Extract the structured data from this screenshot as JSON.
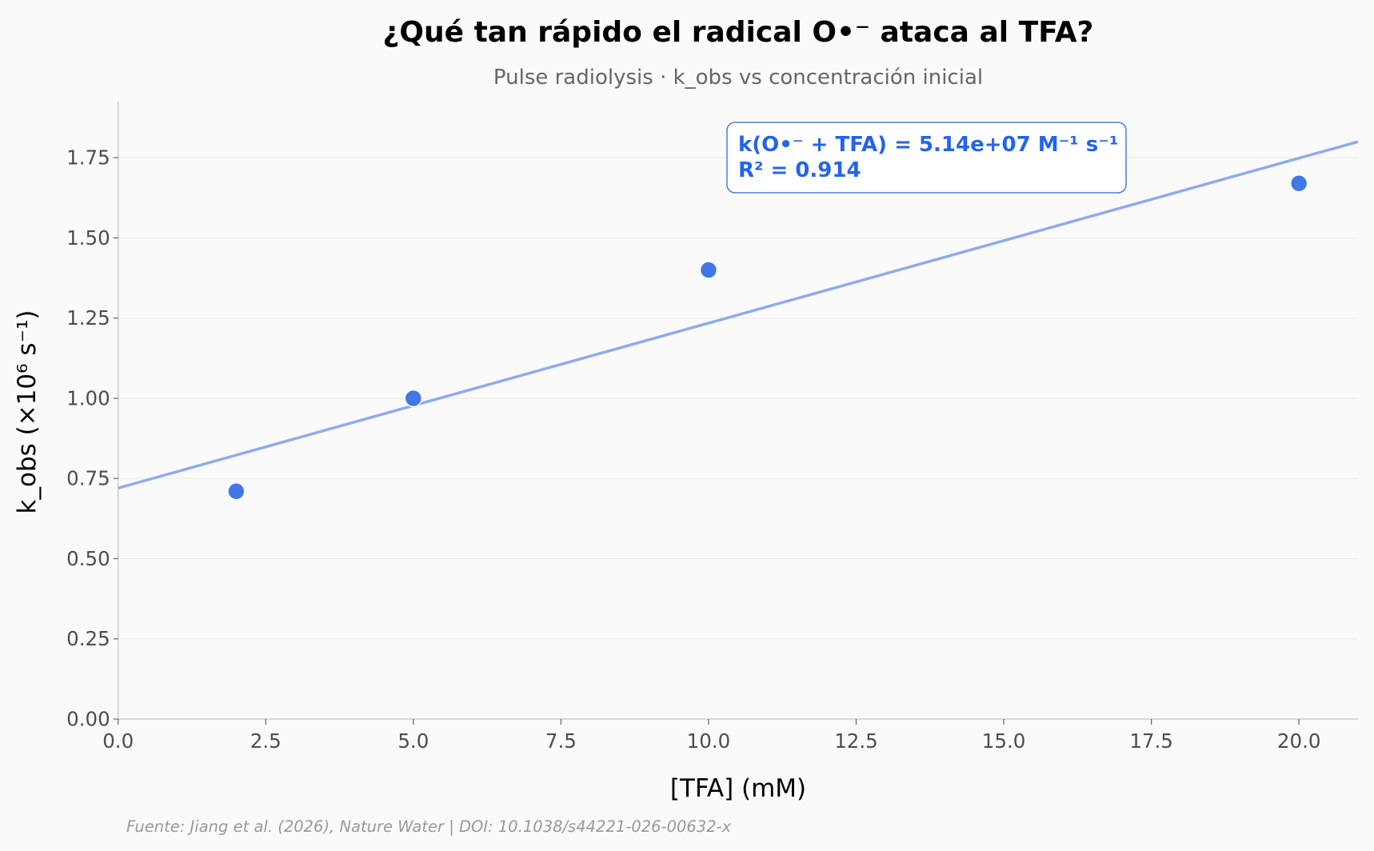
{
  "header": {
    "title": "¿Qué tan rápido el radical O•⁻ ataca al TFA?",
    "subtitle": "Pulse radiolysis · k_obs vs concentración inicial"
  },
  "axes": {
    "xlabel": "[TFA] (mM)",
    "ylabel": "k_obs (×10⁶ s⁻¹)",
    "xticks": [
      "0.0",
      "2.5",
      "5.0",
      "7.5",
      "10.0",
      "12.5",
      "15.0",
      "17.5",
      "20.0"
    ],
    "yticks": [
      "0.00",
      "0.25",
      "0.50",
      "0.75",
      "1.00",
      "1.25",
      "1.50",
      "1.75"
    ]
  },
  "annotation": {
    "line1": "k(O•⁻ + TFA) = 5.14e+07 M⁻¹ s⁻¹",
    "line2": "R² = 0.914"
  },
  "footer": {
    "source": "Fuente: Jiang et al. (2026), Nature Water | DOI: 10.1038/s44221-026-00632-x"
  },
  "colors": {
    "points": "#4178e8",
    "fit_line": "#8fabef",
    "annotation_text": "#2563eb",
    "annotation_border": "#4a7fd8",
    "background": "#fafafa",
    "grid": "#ebebeb",
    "spine": "#cccccc"
  },
  "chart_data": {
    "type": "scatter",
    "title": "¿Qué tan rápido el radical O•⁻ ataca al TFA?",
    "subtitle": "Pulse radiolysis · k_obs vs concentración inicial",
    "xlabel": "[TFA] (mM)",
    "ylabel": "k_obs (×10⁶ s⁻¹)",
    "xlim": [
      0,
      21
    ],
    "ylim": [
      0,
      1.925
    ],
    "grid": "y-only",
    "series": [
      {
        "name": "k_obs",
        "type": "scatter",
        "x": [
          2,
          5,
          10,
          20
        ],
        "y": [
          0.71,
          1.0,
          1.4,
          1.67
        ]
      },
      {
        "name": "linear fit",
        "type": "line",
        "slope": 0.0514,
        "intercept": 0.72,
        "x": [
          0,
          21
        ],
        "y": [
          0.72,
          1.8
        ]
      }
    ],
    "annotations": [
      "k(O•⁻ + TFA) = 5.14e+07 M⁻¹ s⁻¹",
      "R² = 0.914"
    ],
    "source": "Fuente: Jiang et al. (2026), Nature Water | DOI: 10.1038/s44221-026-00632-x"
  }
}
